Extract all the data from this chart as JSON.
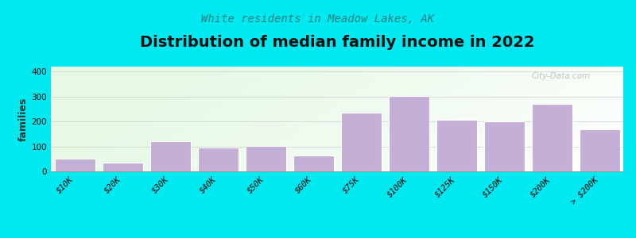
{
  "title": "Distribution of median family income in 2022",
  "subtitle": "White residents in Meadow Lakes, AK",
  "ylabel": "families",
  "categories": [
    "$10K",
    "$20K",
    "$30K",
    "$40K",
    "$50K",
    "$60K",
    "$75K",
    "$100K",
    "$125K",
    "$150K",
    "$200K",
    "> $200K"
  ],
  "values": [
    50,
    35,
    120,
    97,
    102,
    65,
    235,
    302,
    207,
    200,
    270,
    170
  ],
  "bar_color": "#c4afd6",
  "bar_edge_color": "#ffffff",
  "bg_color": "#00e8f0",
  "title_fontsize": 14,
  "subtitle_fontsize": 10,
  "ylabel_fontsize": 9,
  "tick_fontsize": 7.5,
  "yticks": [
    0,
    100,
    200,
    300,
    400
  ],
  "ylim": [
    0,
    420
  ],
  "watermark": "City-Data.com",
  "title_color": "#111111",
  "subtitle_color": "#2a8080"
}
